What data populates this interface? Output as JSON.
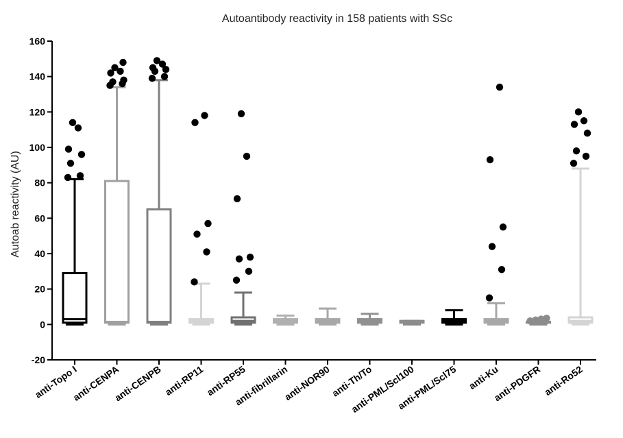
{
  "chart_data": {
    "type": "box",
    "title": "Autoantibody reactivity in 158 patients with SSc",
    "xlabel": "",
    "ylabel": "Autoab reactivity (AU)",
    "ylim": [
      -20,
      160
    ],
    "yticks": [
      -20,
      0,
      20,
      40,
      60,
      80,
      100,
      120,
      140,
      160
    ],
    "grid": false,
    "categories": [
      "anti-Topo I",
      "anti-CENPA",
      "anti-CENPB",
      "anti-RP11",
      "anti-RP55",
      "anti-fibrillarin",
      "anti-NOR90",
      "anti-Th/To",
      "anti-PML/Scl100",
      "anti-PML/Scl75",
      "anti-Ku",
      "anti-PDGFR",
      "anti-Ro52"
    ],
    "boxes": [
      {
        "color": "#000000",
        "min": 0,
        "q1": 1,
        "median": 3,
        "q3": 29,
        "max": 82,
        "outliers": [
          83,
          84,
          91,
          96,
          99,
          111,
          114
        ]
      },
      {
        "color": "#a0a0a0",
        "min": 0,
        "q1": 1,
        "median": 1.5,
        "q3": 81,
        "max": 134,
        "outliers": [
          135,
          136,
          137,
          138,
          142,
          143,
          145,
          148
        ]
      },
      {
        "color": "#808080",
        "min": 0,
        "q1": 1,
        "median": 1.5,
        "q3": 65,
        "max": 138,
        "outliers": [
          139,
          140,
          143,
          144,
          145,
          147,
          149
        ]
      },
      {
        "color": "#d4d4d4",
        "min": 0,
        "q1": 1,
        "median": 2,
        "q3": 3,
        "max": 23,
        "outliers": [
          24,
          41,
          51,
          57,
          114,
          118
        ]
      },
      {
        "color": "#707070",
        "min": 0,
        "q1": 1,
        "median": 2,
        "q3": 4,
        "max": 18,
        "outliers": [
          25,
          30,
          37,
          38,
          71,
          95,
          119
        ]
      },
      {
        "color": "#b0b0b0",
        "min": 0,
        "q1": 1,
        "median": 2,
        "q3": 3,
        "max": 5,
        "outliers": []
      },
      {
        "color": "#a8a8a8",
        "min": 0,
        "q1": 1,
        "median": 2,
        "q3": 3,
        "max": 9,
        "outliers": []
      },
      {
        "color": "#909090",
        "min": 0,
        "q1": 1,
        "median": 2,
        "q3": 3,
        "max": 6,
        "outliers": []
      },
      {
        "color": "#8c8c8c",
        "min": 0,
        "q1": 1,
        "median": 1.5,
        "q3": 2,
        "max": 2,
        "outliers": []
      },
      {
        "color": "#000000",
        "min": 0,
        "q1": 1,
        "median": 2,
        "q3": 3,
        "max": 8,
        "outliers": []
      },
      {
        "color": "#a8a8a8",
        "min": 0,
        "q1": 1,
        "median": 2,
        "q3": 3,
        "max": 12,
        "outliers": [
          15,
          31,
          44,
          55,
          93,
          134
        ]
      },
      {
        "color": "#8c8c8c",
        "min": 0,
        "q1": 1,
        "median": 1,
        "q3": 1.5,
        "max": 2,
        "outliers": [
          2,
          2.5,
          3,
          3.5
        ]
      },
      {
        "color": "#d4d4d4",
        "min": 0,
        "q1": 1,
        "median": 2,
        "q3": 4,
        "max": 88,
        "outliers": [
          91,
          95,
          98,
          108,
          113,
          115,
          120
        ]
      }
    ]
  }
}
